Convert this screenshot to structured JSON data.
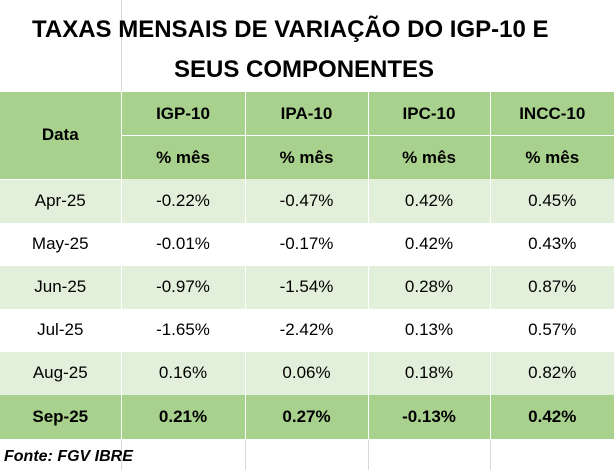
{
  "title": {
    "line1": "TAXAS  MENSAIS DE VARIAÇÃO DO IGP-10 E",
    "line2": "SEUS COMPONENTES"
  },
  "table": {
    "date_header": "Data",
    "columns": [
      "IGP-10",
      "IPA-10",
      "IPC-10",
      "INCC-10"
    ],
    "units": [
      "% mês",
      "% mês",
      "% mês",
      "% mês"
    ],
    "rows": [
      {
        "date": "Apr-25",
        "values": [
          "-0.22%",
          "-0.47%",
          "0.42%",
          "0.45%"
        ]
      },
      {
        "date": "May-25",
        "values": [
          "-0.01%",
          "-0.17%",
          "0.42%",
          "0.43%"
        ]
      },
      {
        "date": "Jun-25",
        "values": [
          "-0.97%",
          "-1.54%",
          "0.28%",
          "0.87%"
        ]
      },
      {
        "date": "Jul-25",
        "values": [
          "-1.65%",
          "-2.42%",
          "0.13%",
          "0.57%"
        ]
      },
      {
        "date": "Aug-25",
        "values": [
          "0.16%",
          "0.06%",
          "0.18%",
          "0.82%"
        ]
      },
      {
        "date": "Sep-25",
        "values": [
          "0.21%",
          "0.27%",
          "-0.13%",
          "0.42%"
        ]
      }
    ]
  },
  "source": "Fonte: FGV IBRE",
  "colors": {
    "header_green": "#a9d18e",
    "band_green": "#e2efda",
    "white": "#ffffff"
  }
}
